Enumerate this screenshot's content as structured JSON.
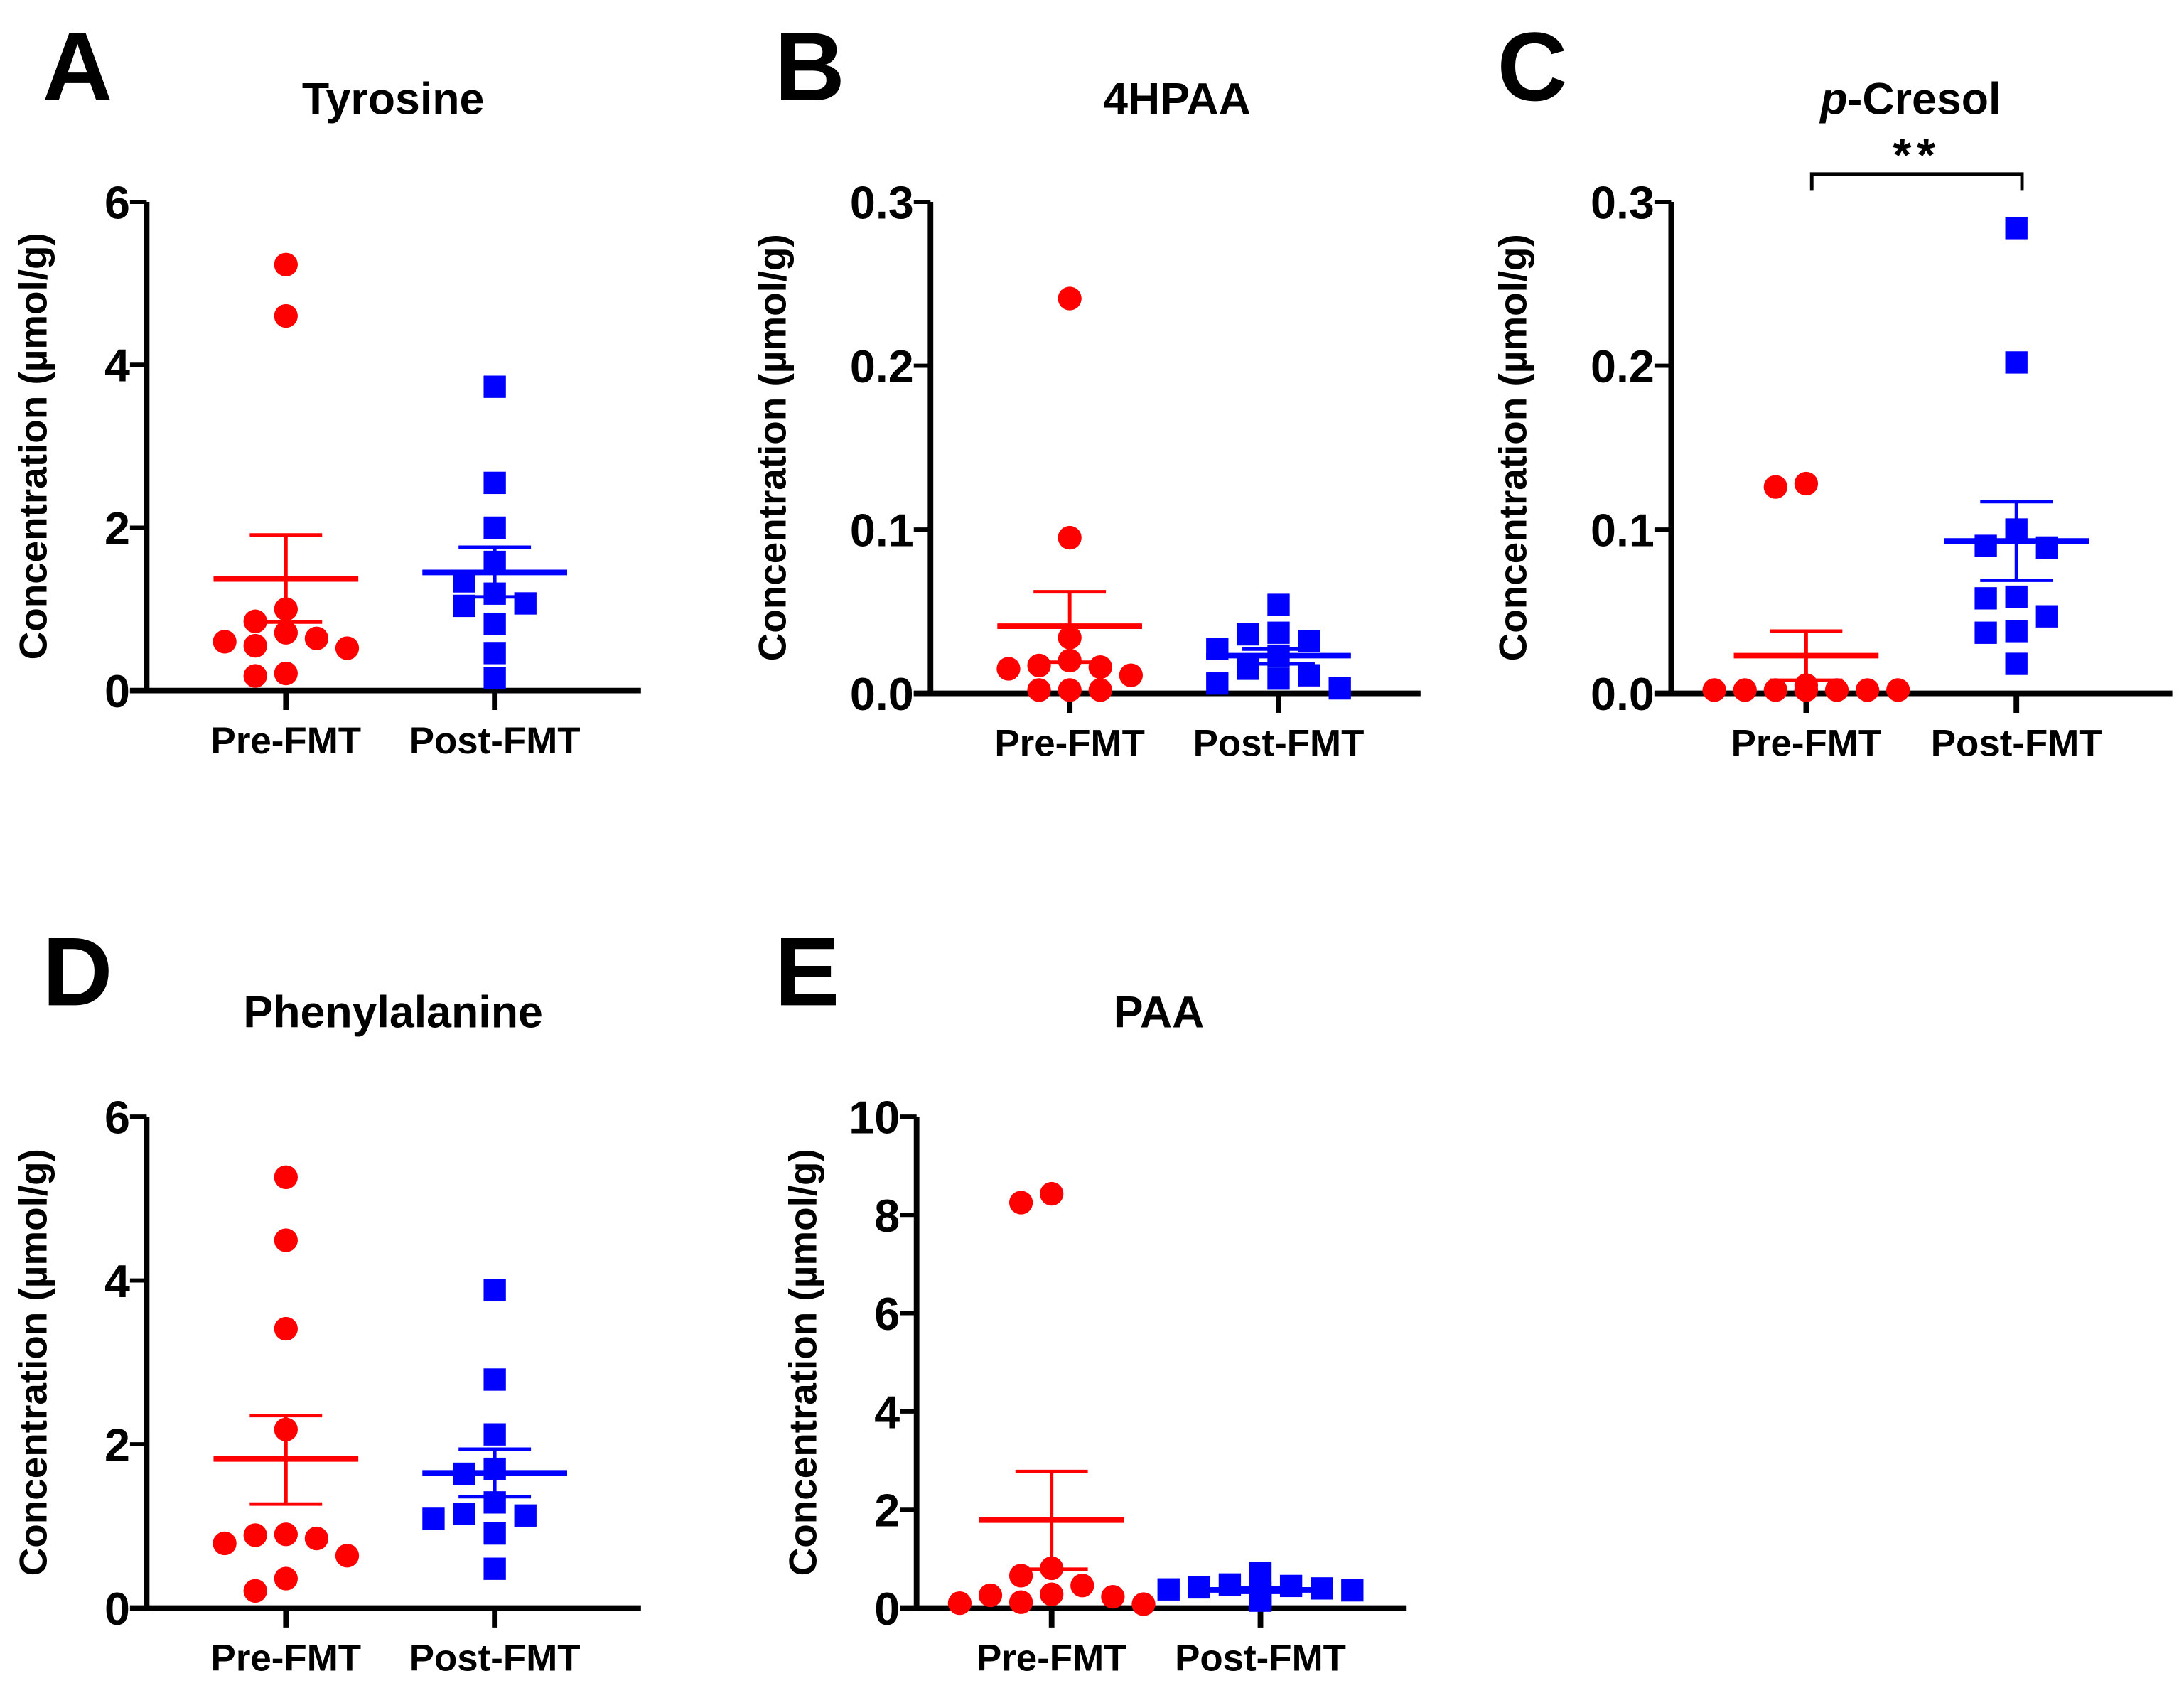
{
  "colors": {
    "pre": "#ff0000",
    "post": "#0000ff",
    "axis": "#000000"
  },
  "chart_data": [
    {
      "type": "scatter",
      "panel": "A",
      "title": "Tyrosine",
      "ylabel": "Concentration (µmol/g)",
      "categories": [
        "Pre-FMT",
        "Post-FMT"
      ],
      "ylim": [
        0,
        6
      ],
      "yticks": [
        "0",
        "2",
        "4",
        "6"
      ],
      "series": [
        {
          "name": "Pre-FMT",
          "marker": "circle",
          "values": [
            5.23,
            4.6,
            1.0,
            0.85,
            0.71,
            0.64,
            0.6,
            0.55,
            0.52,
            0.21,
            0.18
          ],
          "mean": 1.37,
          "sem_upper": 1.91,
          "sem_lower": 0.84
        },
        {
          "name": "Post-FMT",
          "marker": "square",
          "values": [
            3.73,
            2.55,
            2.0,
            1.58,
            1.34,
            1.19,
            1.07,
            1.04,
            0.82,
            0.46,
            0.15
          ],
          "mean": 1.45,
          "sem_upper": 1.76,
          "sem_lower": 1.15
        }
      ]
    },
    {
      "type": "scatter",
      "panel": "B",
      "title": "4HPAA",
      "ylabel": "Concentration (µmol/g)",
      "categories": [
        "Pre-FMT",
        "Post-FMT"
      ],
      "ylim": [
        0,
        0.3
      ],
      "yticks": [
        "0.0",
        "0.1",
        "0.2",
        "0.3"
      ],
      "series": [
        {
          "name": "Pre-FMT",
          "marker": "circle",
          "values": [
            0.241,
            0.095,
            0.034,
            0.02,
            0.017,
            0.016,
            0.015,
            0.011,
            0.002,
            0.002,
            0.002
          ],
          "mean": 0.041,
          "sem_upper": 0.062,
          "sem_lower": 0.019
        },
        {
          "name": "Post-FMT",
          "marker": "square",
          "values": [
            0.054,
            0.037,
            0.036,
            0.032,
            0.027,
            0.023,
            0.015,
            0.011,
            0.009,
            0.006,
            0.003
          ],
          "mean": 0.023,
          "sem_upper": 0.027,
          "sem_lower": 0.018
        }
      ]
    },
    {
      "type": "scatter",
      "panel": "C",
      "title": "p-Cresol",
      "title_italic": "p",
      "title_rest": "-Cresol",
      "ylabel": "Concentration (µmol/g)",
      "categories": [
        "Pre-FMT",
        "Post-FMT"
      ],
      "ylim": [
        0,
        0.3
      ],
      "yticks": [
        "0.0",
        "0.1",
        "0.2",
        "0.3"
      ],
      "significance": "**",
      "series": [
        {
          "name": "Pre-FMT",
          "marker": "circle",
          "values": [
            0.128,
            0.126,
            0.005,
            0.002,
            0.002,
            0.002,
            0.002,
            0.002,
            0.002,
            0.002,
            0.002
          ],
          "mean": 0.023,
          "sem_upper": 0.038,
          "sem_lower": 0.008
        },
        {
          "name": "Post-FMT",
          "marker": "square",
          "values": [
            0.284,
            0.202,
            0.1,
            0.09,
            0.089,
            0.059,
            0.058,
            0.047,
            0.038,
            0.037,
            0.018
          ],
          "mean": 0.093,
          "sem_upper": 0.117,
          "sem_lower": 0.069
        }
      ]
    },
    {
      "type": "scatter",
      "panel": "D",
      "title": "Phenylalanine",
      "ylabel": "Concentration (µmol/g)",
      "categories": [
        "Pre-FMT",
        "Post-FMT"
      ],
      "ylim": [
        0,
        6
      ],
      "yticks": [
        "0",
        "2",
        "4",
        "6"
      ],
      "series": [
        {
          "name": "Pre-FMT",
          "marker": "circle",
          "values": [
            5.26,
            4.49,
            3.41,
            2.18,
            0.9,
            0.89,
            0.85,
            0.79,
            0.64,
            0.36,
            0.21
          ],
          "mean": 1.82,
          "sem_upper": 2.35,
          "sem_lower": 1.27
        },
        {
          "name": "Post-FMT",
          "marker": "square",
          "values": [
            3.88,
            2.79,
            2.12,
            1.7,
            1.64,
            1.29,
            1.15,
            1.13,
            1.09,
            0.91,
            0.48
          ],
          "mean": 1.65,
          "sem_upper": 1.94,
          "sem_lower": 1.36
        }
      ]
    },
    {
      "type": "scatter",
      "panel": "E",
      "title": "PAA",
      "ylabel": "Concentration (µmol/g)",
      "categories": [
        "Pre-FMT",
        "Post-FMT"
      ],
      "ylim": [
        0,
        10
      ],
      "yticks": [
        "0",
        "2",
        "4",
        "6",
        "8",
        "10"
      ],
      "series": [
        {
          "name": "Pre-FMT",
          "marker": "circle",
          "values": [
            8.43,
            8.25,
            0.81,
            0.66,
            0.46,
            0.28,
            0.26,
            0.23,
            0.12,
            0.1,
            0.08
          ],
          "mean": 1.79,
          "sem_upper": 2.78,
          "sem_lower": 0.79
        },
        {
          "name": "Post-FMT",
          "marker": "square",
          "values": [
            0.72,
            0.48,
            0.45,
            0.42,
            0.4,
            0.38,
            0.36,
            0.3,
            0.25,
            0.2,
            0.15
          ],
          "mean": 0.37,
          "sem_upper": 0.42,
          "sem_lower": 0.32
        }
      ]
    }
  ]
}
